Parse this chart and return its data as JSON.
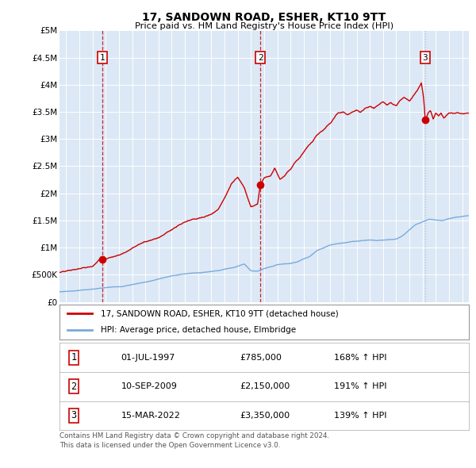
{
  "title": "17, SANDOWN ROAD, ESHER, KT10 9TT",
  "subtitle": "Price paid vs. HM Land Registry's House Price Index (HPI)",
  "legend_line1": "17, SANDOWN ROAD, ESHER, KT10 9TT (detached house)",
  "legend_line2": "HPI: Average price, detached house, Elmbridge",
  "sale_color": "#cc0000",
  "hpi_color": "#7aaadd",
  "background_color": "#dce8f5",
  "grid_color": "#ffffff",
  "ylim": [
    0,
    5000000
  ],
  "yticks": [
    0,
    500000,
    1000000,
    1500000,
    2000000,
    2500000,
    3000000,
    3500000,
    4000000,
    4500000,
    5000000
  ],
  "ytick_labels": [
    "£0",
    "£500K",
    "£1M",
    "£1.5M",
    "£2M",
    "£2.5M",
    "£3M",
    "£3.5M",
    "£4M",
    "£4.5M",
    "£5M"
  ],
  "xlim_start": 1994.5,
  "xlim_end": 2025.5,
  "sale_years": [
    1997.75,
    2009.7,
    2022.2
  ],
  "sale_prices": [
    785000,
    2150000,
    3350000
  ],
  "sale_labels": [
    "1",
    "2",
    "3"
  ],
  "vline_colors": [
    "#cc0000",
    "#cc0000",
    "#aabbdd"
  ],
  "vline_styles": [
    "--",
    "--",
    ":"
  ],
  "table_data": [
    [
      "1",
      "01-JUL-1997",
      "£785,000",
      "168% ↑ HPI"
    ],
    [
      "2",
      "10-SEP-2009",
      "£2,150,000",
      "191% ↑ HPI"
    ],
    [
      "3",
      "15-MAR-2022",
      "£3,350,000",
      "139% ↑ HPI"
    ]
  ],
  "footnote": "Contains HM Land Registry data © Crown copyright and database right 2024.\nThis data is licensed under the Open Government Licence v3.0.",
  "hpi_key": [
    [
      1994.5,
      155000
    ],
    [
      1995.5,
      175000
    ],
    [
      1996.5,
      200000
    ],
    [
      1997.5,
      220000
    ],
    [
      1998.5,
      240000
    ],
    [
      1999.5,
      270000
    ],
    [
      2000.5,
      320000
    ],
    [
      2001.5,
      370000
    ],
    [
      2002.5,
      430000
    ],
    [
      2003.5,
      480000
    ],
    [
      2004.5,
      510000
    ],
    [
      2005.5,
      530000
    ],
    [
      2006.5,
      570000
    ],
    [
      2007.5,
      620000
    ],
    [
      2008.5,
      700000
    ],
    [
      2009.0,
      580000
    ],
    [
      2009.5,
      570000
    ],
    [
      2010.0,
      620000
    ],
    [
      2010.5,
      660000
    ],
    [
      2011.0,
      700000
    ],
    [
      2011.5,
      720000
    ],
    [
      2012.0,
      730000
    ],
    [
      2012.5,
      750000
    ],
    [
      2013.0,
      800000
    ],
    [
      2013.5,
      850000
    ],
    [
      2014.0,
      950000
    ],
    [
      2014.5,
      1000000
    ],
    [
      2015.0,
      1050000
    ],
    [
      2015.5,
      1080000
    ],
    [
      2016.0,
      1100000
    ],
    [
      2016.5,
      1120000
    ],
    [
      2017.0,
      1130000
    ],
    [
      2017.5,
      1150000
    ],
    [
      2018.0,
      1160000
    ],
    [
      2018.5,
      1150000
    ],
    [
      2019.0,
      1160000
    ],
    [
      2019.5,
      1170000
    ],
    [
      2020.0,
      1180000
    ],
    [
      2020.5,
      1250000
    ],
    [
      2021.0,
      1350000
    ],
    [
      2021.5,
      1450000
    ],
    [
      2022.0,
      1500000
    ],
    [
      2022.5,
      1550000
    ],
    [
      2023.0,
      1530000
    ],
    [
      2023.5,
      1520000
    ],
    [
      2024.0,
      1550000
    ],
    [
      2024.5,
      1570000
    ],
    [
      2025.0,
      1580000
    ],
    [
      2025.5,
      1590000
    ]
  ],
  "sale_key": [
    [
      1994.5,
      510000
    ],
    [
      1995.0,
      520000
    ],
    [
      1995.5,
      540000
    ],
    [
      1996.0,
      560000
    ],
    [
      1996.5,
      580000
    ],
    [
      1997.0,
      600000
    ],
    [
      1997.75,
      785000
    ],
    [
      1998.0,
      760000
    ],
    [
      1998.5,
      800000
    ],
    [
      1999.0,
      850000
    ],
    [
      1999.5,
      900000
    ],
    [
      2000.0,
      980000
    ],
    [
      2000.5,
      1050000
    ],
    [
      2001.0,
      1100000
    ],
    [
      2001.5,
      1150000
    ],
    [
      2002.0,
      1200000
    ],
    [
      2002.5,
      1280000
    ],
    [
      2003.0,
      1350000
    ],
    [
      2003.5,
      1420000
    ],
    [
      2004.0,
      1470000
    ],
    [
      2004.5,
      1500000
    ],
    [
      2005.0,
      1520000
    ],
    [
      2005.5,
      1550000
    ],
    [
      2006.0,
      1600000
    ],
    [
      2006.5,
      1700000
    ],
    [
      2007.0,
      1900000
    ],
    [
      2007.5,
      2150000
    ],
    [
      2008.0,
      2280000
    ],
    [
      2008.5,
      2100000
    ],
    [
      2009.0,
      1750000
    ],
    [
      2009.5,
      1800000
    ],
    [
      2009.7,
      2150000
    ],
    [
      2010.0,
      2300000
    ],
    [
      2010.5,
      2350000
    ],
    [
      2010.8,
      2500000
    ],
    [
      2011.0,
      2400000
    ],
    [
      2011.2,
      2300000
    ],
    [
      2011.5,
      2350000
    ],
    [
      2011.8,
      2450000
    ],
    [
      2012.0,
      2500000
    ],
    [
      2012.3,
      2600000
    ],
    [
      2012.7,
      2700000
    ],
    [
      2013.0,
      2800000
    ],
    [
      2013.3,
      2900000
    ],
    [
      2013.7,
      3000000
    ],
    [
      2014.0,
      3100000
    ],
    [
      2014.5,
      3200000
    ],
    [
      2015.0,
      3300000
    ],
    [
      2015.3,
      3400000
    ],
    [
      2015.6,
      3500000
    ],
    [
      2016.0,
      3500000
    ],
    [
      2016.3,
      3450000
    ],
    [
      2016.6,
      3500000
    ],
    [
      2017.0,
      3550000
    ],
    [
      2017.3,
      3500000
    ],
    [
      2017.6,
      3550000
    ],
    [
      2018.0,
      3600000
    ],
    [
      2018.3,
      3550000
    ],
    [
      2018.6,
      3600000
    ],
    [
      2019.0,
      3650000
    ],
    [
      2019.3,
      3600000
    ],
    [
      2019.6,
      3650000
    ],
    [
      2020.0,
      3600000
    ],
    [
      2020.3,
      3700000
    ],
    [
      2020.6,
      3750000
    ],
    [
      2021.0,
      3700000
    ],
    [
      2021.3,
      3800000
    ],
    [
      2021.6,
      3900000
    ],
    [
      2021.9,
      4050000
    ],
    [
      2022.0,
      3900000
    ],
    [
      2022.1,
      3700000
    ],
    [
      2022.2,
      3350000
    ],
    [
      2022.4,
      3500000
    ],
    [
      2022.6,
      3550000
    ],
    [
      2022.8,
      3400000
    ],
    [
      2023.0,
      3500000
    ],
    [
      2023.2,
      3450000
    ],
    [
      2023.4,
      3500000
    ],
    [
      2023.6,
      3400000
    ],
    [
      2023.8,
      3450000
    ],
    [
      2024.0,
      3500000
    ],
    [
      2024.3,
      3480000
    ],
    [
      2024.6,
      3500000
    ],
    [
      2025.0,
      3480000
    ],
    [
      2025.5,
      3500000
    ]
  ]
}
